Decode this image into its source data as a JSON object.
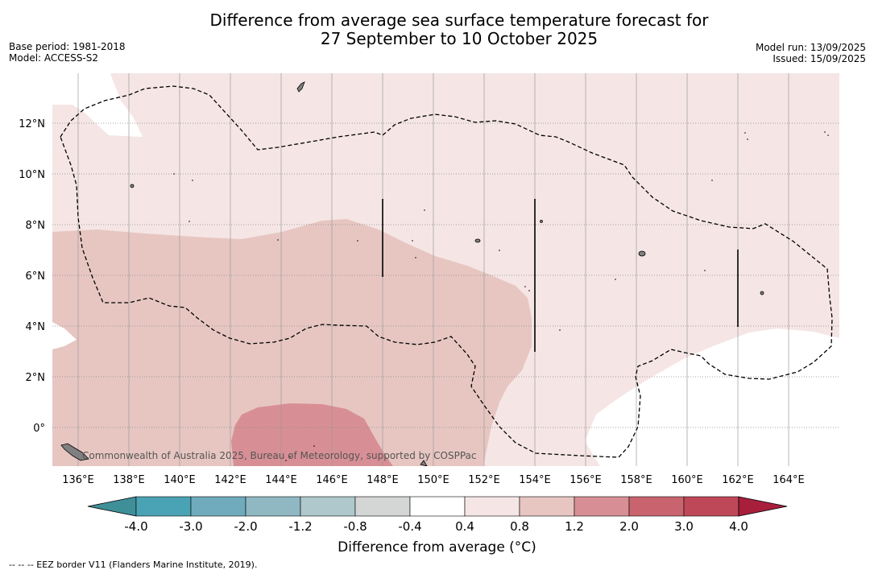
{
  "title_line1": "Difference from average sea surface temperature forecast for",
  "title_line2": "27 September to 10 October 2025",
  "base_period": "Base period: 1981-2018",
  "model": "Model: ACCESS-S2",
  "model_run": "Model run: 13/09/2025",
  "issued": "Issued: 15/09/2025",
  "credit": "Commonwealth of Australia 2025, Bureau of Meteorology, supported by COSPPac",
  "footer": "--  --  -- EEZ border V11 (Flanders Marine Institute, 2019).",
  "colorbar": {
    "label": "Difference from average (°C)",
    "ticks": [
      "-4.0",
      "-3.0",
      "-2.0",
      "-1.2",
      "-0.8",
      "-0.4",
      "0.4",
      "0.8",
      "1.2",
      "2.0",
      "3.0",
      "4.0"
    ],
    "colors": [
      "#3f8f98",
      "#4aa3b5",
      "#6fabbd",
      "#8fb8c3",
      "#aec8cc",
      "#d4d6d6",
      "#ffffff",
      "#f5e6e5",
      "#e7c6c2",
      "#d78f95",
      "#c9646f",
      "#bf4858",
      "#a81f3c"
    ]
  },
  "map": {
    "lon_labels": [
      "136°E",
      "138°E",
      "140°E",
      "142°E",
      "144°E",
      "146°E",
      "148°E",
      "150°E",
      "152°E",
      "154°E",
      "156°E",
      "158°E",
      "160°E",
      "162°E",
      "164°E"
    ],
    "lat_labels": [
      "12°N",
      "10°N",
      "8°N",
      "6°N",
      "4°N",
      "2°N",
      "0°"
    ],
    "colors": {
      "light_pink": "#f5e6e5",
      "pink": "#e7c6c2",
      "rose": "#d78f95",
      "white": "#ffffff",
      "land": "#808080"
    }
  }
}
